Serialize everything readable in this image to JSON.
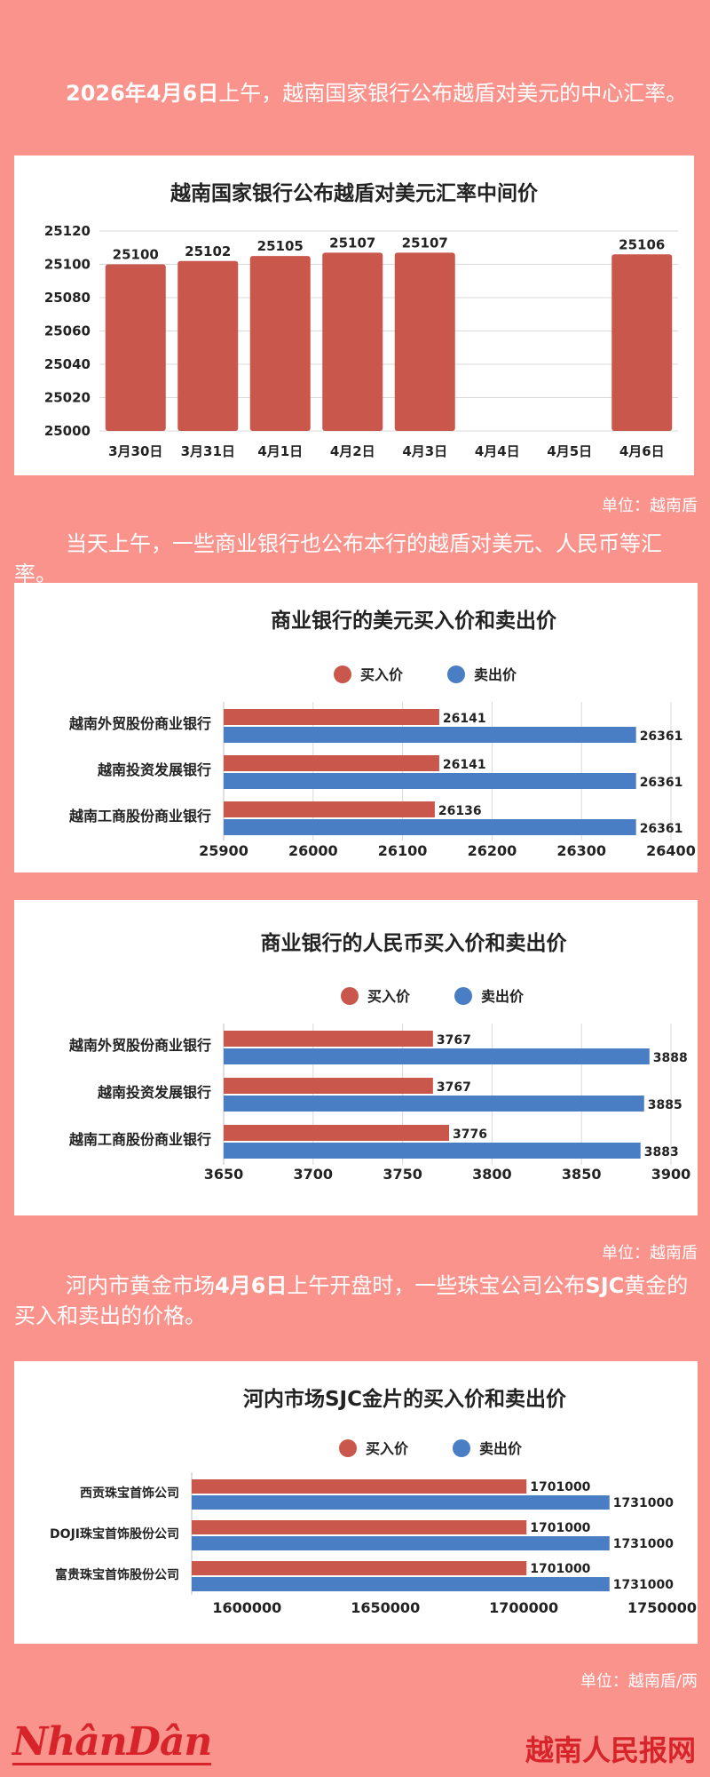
{
  "texts": {
    "p1_bold": "2026年4月6日",
    "p1_rest": "上午，越南国家银行公布越盾对美元的中心汇率。",
    "unit1": "单位：越南盾",
    "p2": "当天上午，一些商业银行也公布本行的越盾对美元、人民币等汇率。",
    "unit2": "单位：越南盾",
    "p3_a": "河内市黄金市场",
    "p3_b": "4月6日",
    "p3_c": "上午开盘时，一些珠宝公司公布",
    "p3_d": "SJC",
    "p3_e": "黄金的买入和卖出的价格。",
    "unit3": "单位：越南盾/两",
    "logo_left": "NhânDân",
    "logo_right": "越南人民报网"
  },
  "colors": {
    "buy": "#c9574b",
    "sell": "#4a7ec4",
    "bar": "#c9574b"
  },
  "chart_data": [
    {
      "type": "bar",
      "title": "越南国家银行公布越盾对美元汇率中间价",
      "categories": [
        "3月30日",
        "3月31日",
        "4月1日",
        "4月2日",
        "4月3日",
        "4月4日",
        "4月5日",
        "4月6日"
      ],
      "values": [
        25100,
        25102,
        25105,
        25107,
        25107,
        null,
        null,
        25106
      ],
      "ylim": [
        25000,
        25120
      ],
      "yticks": [
        25000,
        25020,
        25040,
        25060,
        25080,
        25100,
        25120
      ],
      "grid": true
    },
    {
      "type": "bar",
      "orientation": "horizontal",
      "title": "商业银行的美元买入价和卖出价",
      "legend_position": "top",
      "categories": [
        "越南外贸股份商业银行",
        "越南投资发展银行",
        "越南工商股份商业银行"
      ],
      "series": [
        {
          "name": "买入价",
          "values": [
            26141,
            26141,
            26136
          ]
        },
        {
          "name": "卖出价",
          "values": [
            26361,
            26361,
            26361
          ]
        }
      ],
      "xlim": [
        25900,
        26400
      ],
      "xticks": [
        25900,
        26000,
        26100,
        26200,
        26300,
        26400
      ],
      "grid": true
    },
    {
      "type": "bar",
      "orientation": "horizontal",
      "title": "商业银行的人民币买入价和卖出价",
      "legend_position": "top",
      "categories": [
        "越南外贸股份商业银行",
        "越南投资发展银行",
        "越南工商股份商业银行"
      ],
      "series": [
        {
          "name": "买入价",
          "values": [
            3767,
            3767,
            3776
          ]
        },
        {
          "name": "卖出价",
          "values": [
            3888,
            3885,
            3883
          ]
        }
      ],
      "xlim": [
        3650,
        3900
      ],
      "xticks": [
        3650,
        3700,
        3750,
        3800,
        3850,
        3900
      ],
      "grid": true
    },
    {
      "type": "bar",
      "orientation": "horizontal",
      "title": "河内市场SJC金片的买入价和卖出价",
      "legend_position": "top",
      "categories": [
        "西贡珠宝首饰公司",
        "DOJI珠宝首饰股份公司",
        "富贵珠宝首饰股份公司"
      ],
      "series": [
        {
          "name": "买入价",
          "values": [
            1701000,
            1701000,
            1701000
          ]
        },
        {
          "name": "卖出价",
          "values": [
            1731000,
            1731000,
            1731000
          ]
        }
      ],
      "xlim": [
        1580000,
        1750000
      ],
      "xticks": [
        1600000,
        1650000,
        1700000,
        1750000
      ],
      "grid": false
    }
  ]
}
